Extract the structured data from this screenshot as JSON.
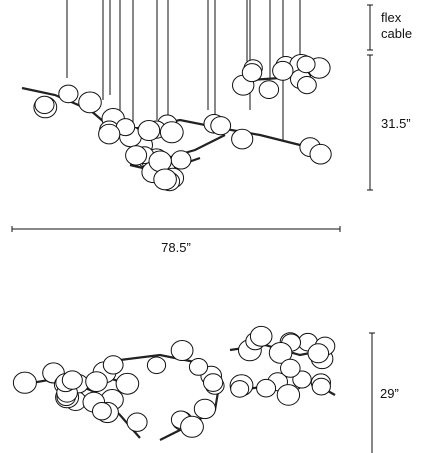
{
  "dimensions": {
    "flex_cable": [
      "flex",
      "cable"
    ],
    "height_top": "31.5”",
    "width": "78.5”",
    "height_bottom": "29”"
  }
}
